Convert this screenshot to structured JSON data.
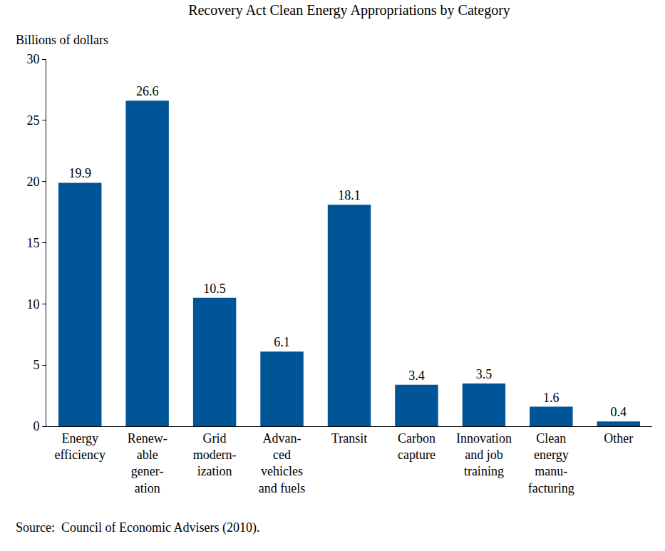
{
  "chart_data": {
    "type": "bar",
    "title": "Recovery Act Clean Energy Appropriations by Category",
    "y_label": "Billions of dollars",
    "annotations": [
      "Source:  Council of Economic Advisers (2010)."
    ],
    "categories": [
      "Energy\nefficiency",
      "Renew-\nable\ngener-\nation",
      "Grid\nmodern-\nization",
      "Advan-\nced\nvehicles\nand fuels",
      "Transit",
      "Carbon\ncapture",
      "Innovation\nand job\ntraining",
      "Clean\nenergy\nmanu-\nfacturing",
      "Other"
    ],
    "values": [
      19.9,
      26.6,
      10.5,
      6.1,
      18.1,
      3.4,
      3.5,
      1.6,
      0.4
    ],
    "value_labels": [
      "19.9",
      "26.6",
      "10.5",
      "6.1",
      "18.1",
      "3.4",
      "3.5",
      "1.6",
      "0.4"
    ],
    "color": "#005596",
    "ylim": [
      0,
      30
    ],
    "yticks": [
      0,
      5,
      10,
      15,
      20,
      25,
      30
    ],
    "grid": false,
    "data_labels": true
  }
}
